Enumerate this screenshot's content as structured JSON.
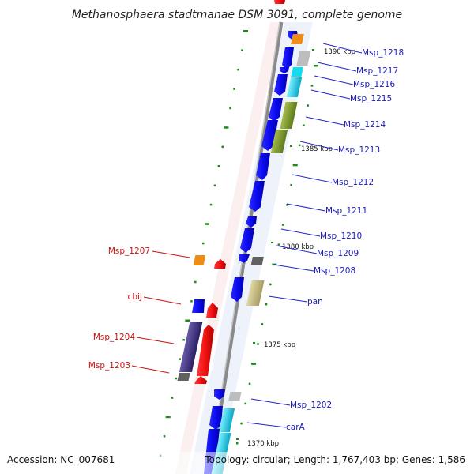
{
  "title": "Methanosphaera stadtmanae DSM 3091, complete genome",
  "footer": {
    "accession": "Accession: NC_007681",
    "topology": "Topology: circular; Length: 1,767,403 bp; Genes: 1,586"
  },
  "ticks": [
    "1390 kbp",
    "1385 kbp",
    "1380 kbp",
    "1375 kbp",
    "1370 kbp"
  ],
  "outer_labels": [
    "Msp_1218",
    "Msp_1217",
    "Msp_1216",
    "Msp_1215",
    "Msp_1214",
    "Msp_1213",
    "Msp_1212",
    "Msp_1211",
    "Msp_1210",
    "Msp_1209",
    "Msp_1208",
    "pan",
    "Msp_1202",
    "carA"
  ],
  "inner_labels": [
    "Msp_1207",
    "cbiJ",
    "Msp_1204",
    "Msp_1203"
  ],
  "colors": {
    "strand_forward": "#0b0bef",
    "strand_reverse": "#f21111",
    "backbone": "#8a8a8a",
    "grid_dot": "#1a8c1a",
    "orange": "#f08c14",
    "grey": "#bdbdbd",
    "dark_grey": "#606060",
    "cyan": "#14dcf0",
    "olive": "#7a9a2a",
    "khaki": "#c8c088",
    "purple": "#4a3a8a"
  }
}
